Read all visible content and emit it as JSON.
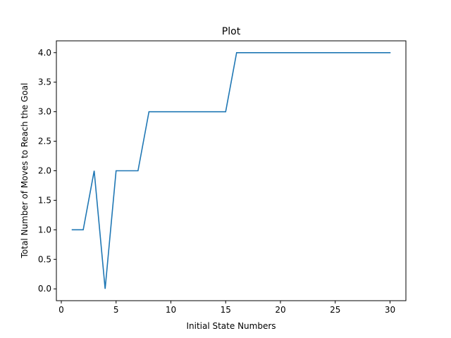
{
  "chart_data": {
    "type": "line",
    "title": "Plot",
    "xlabel": "Initial State Numbers",
    "ylabel": "Total Number of Moves to Reach the Goal",
    "xlim": [
      -0.45,
      31.45
    ],
    "ylim": [
      -0.2,
      4.2
    ],
    "xticks": [
      0,
      5,
      10,
      15,
      20,
      25,
      30
    ],
    "yticks": [
      0.0,
      0.5,
      1.0,
      1.5,
      2.0,
      2.5,
      3.0,
      3.5,
      4.0
    ],
    "ytick_labels": [
      "0.0",
      "0.5",
      "1.0",
      "1.5",
      "2.0",
      "2.5",
      "3.0",
      "3.5",
      "4.0"
    ],
    "grid": false,
    "line_color": "#1f77b4",
    "series": [
      {
        "x": [
          1,
          2,
          3,
          4,
          5,
          6,
          7,
          8,
          9,
          10,
          11,
          12,
          13,
          14,
          15,
          16,
          17,
          18,
          19,
          20,
          21,
          22,
          23,
          24,
          25,
          26,
          27,
          28,
          29,
          30
        ],
        "values": [
          1,
          1,
          2,
          0,
          2,
          2,
          2,
          3,
          3,
          3,
          3,
          3,
          3,
          3,
          3,
          4,
          4,
          4,
          4,
          4,
          4,
          4,
          4,
          4,
          4,
          4,
          4,
          4,
          4,
          4
        ]
      }
    ]
  }
}
